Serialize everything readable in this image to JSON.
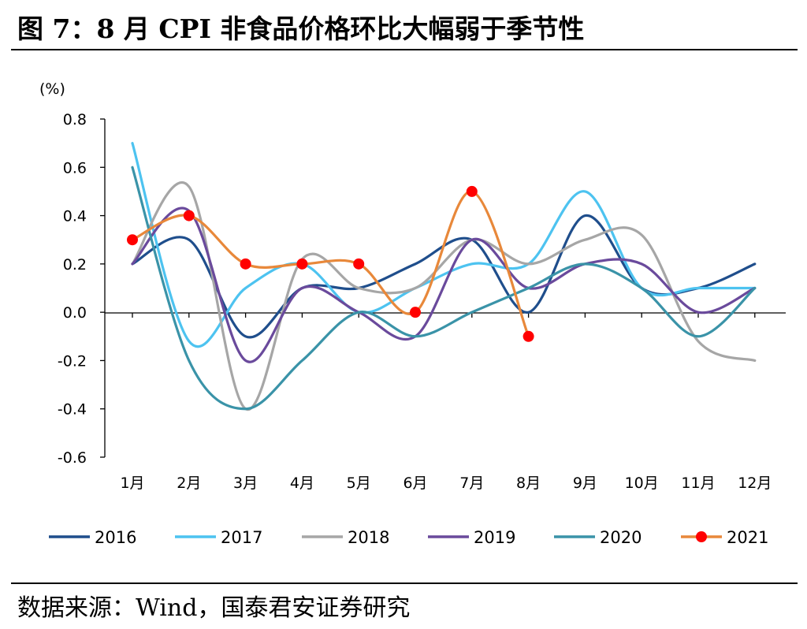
{
  "header": {
    "title": "图 7：8 月 CPI 非食品价格环比大幅弱于季节性"
  },
  "footer": {
    "source": "数据来源：Wind，国泰君安证券研究"
  },
  "chart_data": {
    "type": "line",
    "ylabel": "(%)",
    "ylim": [
      -0.6,
      0.8
    ],
    "yticks": [
      "0.8",
      "0.6",
      "0.4",
      "0.2",
      "0.0",
      "-0.2",
      "-0.4",
      "-0.6"
    ],
    "ytick_values": [
      0.8,
      0.6,
      0.4,
      0.2,
      0.0,
      -0.2,
      -0.4,
      -0.6
    ],
    "categories": [
      "1月",
      "2月",
      "3月",
      "4月",
      "5月",
      "6月",
      "7月",
      "8月",
      "9月",
      "10月",
      "11月",
      "12月"
    ],
    "legend_position": "bottom",
    "series": [
      {
        "name": "2016",
        "color": "#1f4e8c",
        "values": [
          0.2,
          0.3,
          -0.1,
          0.1,
          0.1,
          0.2,
          0.3,
          0.0,
          0.4,
          0.1,
          0.1,
          0.2
        ]
      },
      {
        "name": "2017",
        "color": "#4dc3f0",
        "values": [
          0.7,
          -0.12,
          0.1,
          0.2,
          0.0,
          0.1,
          0.2,
          0.2,
          0.5,
          0.1,
          0.1,
          0.1
        ]
      },
      {
        "name": "2018",
        "color": "#a6a6a6",
        "values": [
          0.2,
          0.52,
          -0.4,
          0.22,
          0.1,
          0.1,
          0.3,
          0.2,
          0.3,
          0.32,
          -0.12,
          -0.2
        ]
      },
      {
        "name": "2019",
        "color": "#6a4a9c",
        "values": [
          0.2,
          0.42,
          -0.2,
          0.1,
          0.0,
          -0.1,
          0.3,
          0.1,
          0.2,
          0.2,
          0.0,
          0.1
        ]
      },
      {
        "name": "2020",
        "color": "#3a93a8",
        "values": [
          0.6,
          -0.2,
          -0.4,
          -0.2,
          0.0,
          -0.1,
          0.0,
          0.1,
          0.2,
          0.1,
          -0.1,
          0.1
        ]
      },
      {
        "name": "2021",
        "color": "#e8883a",
        "marker_color": "#ff0000",
        "marker": true,
        "values": [
          0.3,
          0.4,
          0.2,
          0.2,
          0.2,
          0.0,
          0.5,
          -0.1,
          null,
          null,
          null,
          null
        ]
      }
    ]
  }
}
